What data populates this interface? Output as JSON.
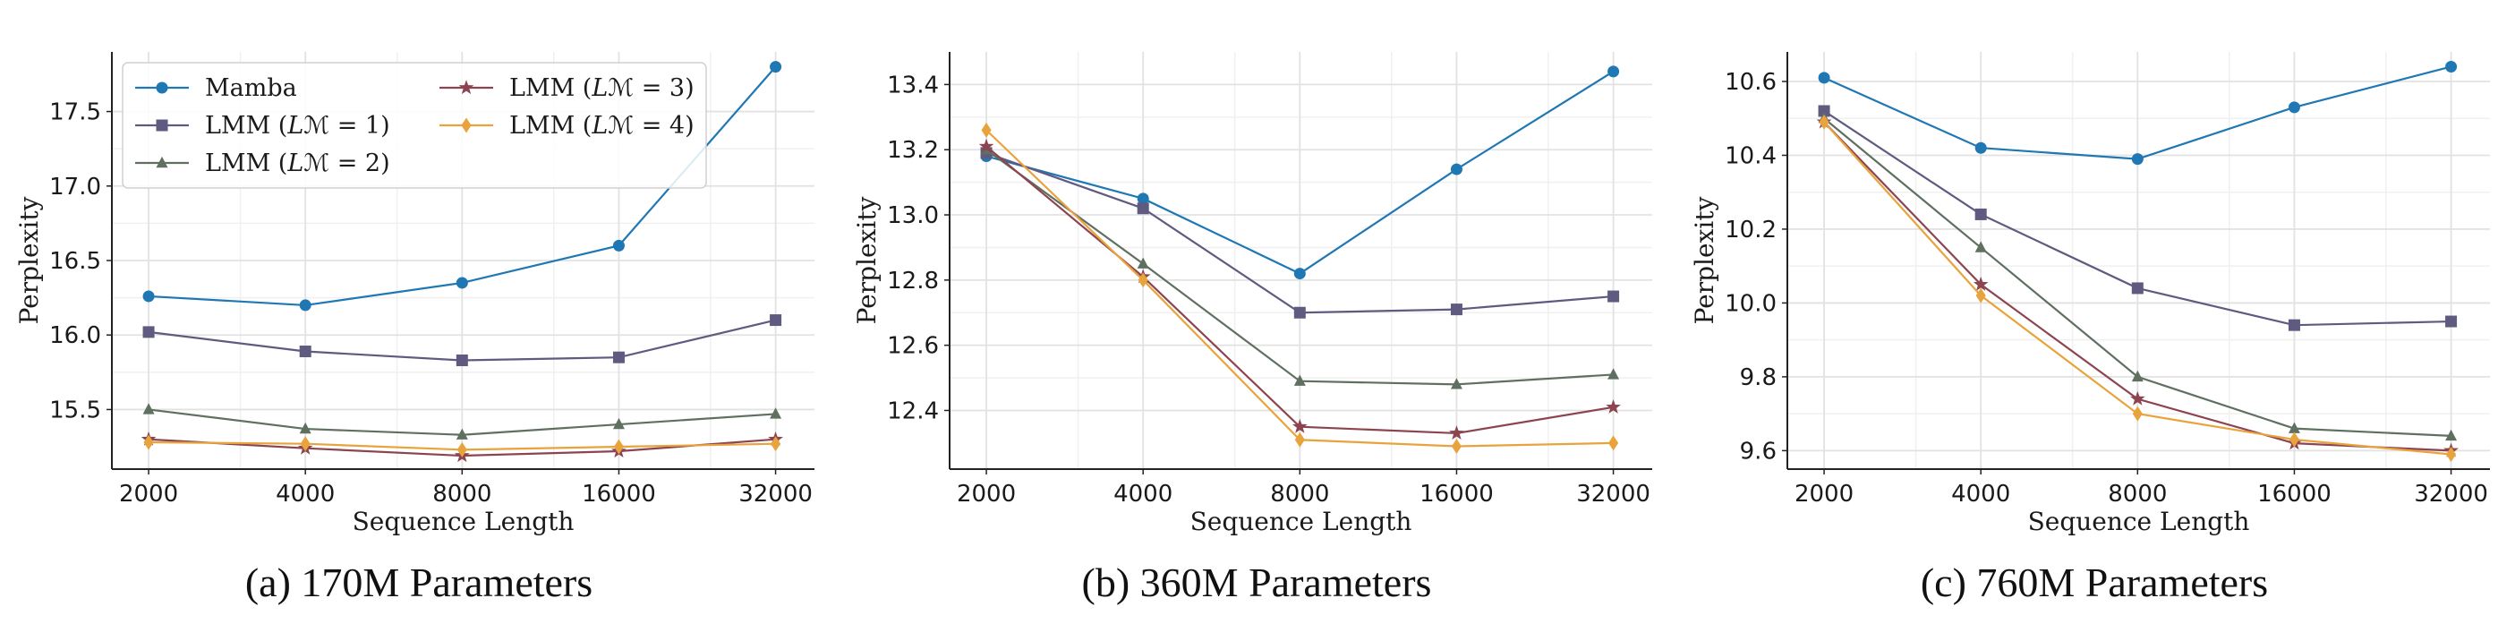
{
  "chart_data": [
    {
      "type": "line",
      "caption": "(a) 170M Parameters",
      "xlabel": "Sequence Length",
      "ylabel": "Perplexity",
      "x": [
        2000,
        4000,
        8000,
        16000,
        32000
      ],
      "x_scale": "log2",
      "xlim": [
        1700,
        38000
      ],
      "ylim": [
        15.1,
        17.9
      ],
      "yticks": [
        15.5,
        16.0,
        16.5,
        17.0,
        17.5
      ],
      "ytick_labels": [
        "15.5",
        "16.0",
        "16.5",
        "17.0",
        "17.5"
      ],
      "grid": true,
      "legend": "upper-left",
      "series": [
        {
          "name": "Mamba",
          "values": [
            16.26,
            16.2,
            16.35,
            16.6,
            17.8
          ]
        },
        {
          "name": "LMM (𝐿ℳ = 1)",
          "values": [
            16.02,
            15.89,
            15.83,
            15.85,
            16.1
          ]
        },
        {
          "name": "LMM (𝐿ℳ = 2)",
          "values": [
            15.5,
            15.37,
            15.33,
            15.4,
            15.47
          ]
        },
        {
          "name": "LMM (𝐿ℳ = 3)",
          "values": [
            15.3,
            15.24,
            15.19,
            15.22,
            15.3
          ]
        },
        {
          "name": "LMM (𝐿ℳ = 4)",
          "values": [
            15.28,
            15.27,
            15.23,
            15.25,
            15.27
          ]
        }
      ]
    },
    {
      "type": "line",
      "caption": "(b) 360M Parameters",
      "xlabel": "Sequence Length",
      "ylabel": "Perplexity",
      "x": [
        2000,
        4000,
        8000,
        16000,
        32000
      ],
      "x_scale": "log2",
      "xlim": [
        1700,
        38000
      ],
      "ylim": [
        12.22,
        13.5
      ],
      "yticks": [
        12.4,
        12.6,
        12.8,
        13.0,
        13.2,
        13.4
      ],
      "ytick_labels": [
        "12.4",
        "12.6",
        "12.8",
        "13.0",
        "13.2",
        "13.4"
      ],
      "grid": true,
      "series": [
        {
          "name": "Mamba",
          "values": [
            13.18,
            13.05,
            12.82,
            13.14,
            13.44
          ]
        },
        {
          "name": "LMM (𝐿ℳ = 1)",
          "values": [
            13.19,
            13.02,
            12.7,
            12.71,
            12.75
          ]
        },
        {
          "name": "LMM (𝐿ℳ = 2)",
          "values": [
            13.2,
            12.85,
            12.49,
            12.48,
            12.51
          ]
        },
        {
          "name": "LMM (𝐿ℳ = 3)",
          "values": [
            13.21,
            12.81,
            12.35,
            12.33,
            12.41
          ]
        },
        {
          "name": "LMM (𝐿ℳ = 4)",
          "values": [
            13.26,
            12.8,
            12.31,
            12.29,
            12.3
          ]
        }
      ]
    },
    {
      "type": "line",
      "caption": "(c) 760M Parameters",
      "xlabel": "Sequence Length",
      "ylabel": "Perplexity",
      "x": [
        2000,
        4000,
        8000,
        16000,
        32000
      ],
      "x_scale": "log2",
      "xlim": [
        1700,
        38000
      ],
      "ylim": [
        9.55,
        10.68
      ],
      "yticks": [
        9.6,
        9.8,
        10.0,
        10.2,
        10.4,
        10.6
      ],
      "ytick_labels": [
        "9.6",
        "9.8",
        "10.0",
        "10.2",
        "10.4",
        "10.6"
      ],
      "grid": true,
      "series": [
        {
          "name": "Mamba",
          "values": [
            10.61,
            10.42,
            10.39,
            10.53,
            10.64
          ]
        },
        {
          "name": "LMM (𝐿ℳ = 1)",
          "values": [
            10.52,
            10.24,
            10.04,
            9.94,
            9.95
          ]
        },
        {
          "name": "LMM (𝐿ℳ = 2)",
          "values": [
            10.5,
            10.15,
            9.8,
            9.66,
            9.64
          ]
        },
        {
          "name": "LMM (𝐿ℳ = 3)",
          "values": [
            10.49,
            10.05,
            9.74,
            9.62,
            9.6
          ]
        },
        {
          "name": "LMM (𝐿ℳ = 4)",
          "values": [
            10.49,
            10.02,
            9.7,
            9.63,
            9.59
          ]
        }
      ]
    }
  ],
  "series_style": [
    {
      "color": "#1f77b4",
      "marker": "circle"
    },
    {
      "color": "#5f5a80",
      "marker": "square"
    },
    {
      "color": "#5f7060",
      "marker": "triangle"
    },
    {
      "color": "#8c4450",
      "marker": "star"
    },
    {
      "color": "#e8a33c",
      "marker": "diamond"
    }
  ]
}
